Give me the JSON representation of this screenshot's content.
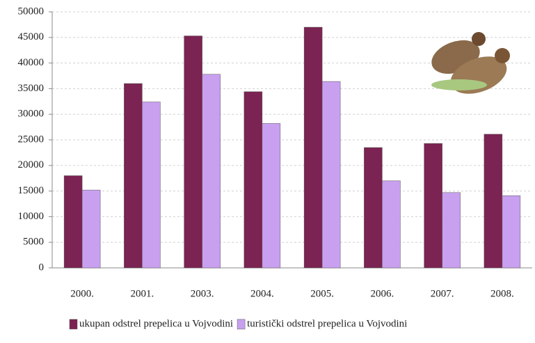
{
  "chart_data": {
    "type": "bar",
    "categories": [
      "2000.",
      "2001.",
      "2003.",
      "2004.",
      "2005.",
      "2006.",
      "2007.",
      "2008."
    ],
    "series": [
      {
        "name": "ukupan odstrel prepelica u Vojvodini",
        "color": "#7b2352",
        "values": [
          18000,
          36000,
          45300,
          34400,
          47000,
          23500,
          24300,
          26100
        ]
      },
      {
        "name": "turistički odstrel prepelica u Vojvodini",
        "color": "#c9a0f0",
        "values": [
          15200,
          32400,
          37800,
          28200,
          36400,
          17000,
          14700,
          14100
        ]
      }
    ],
    "ylim": [
      0,
      50000
    ],
    "yticks": [
      0,
      5000,
      10000,
      15000,
      20000,
      25000,
      30000,
      35000,
      40000,
      45000,
      50000
    ],
    "grid": true,
    "legend": "bottom"
  }
}
